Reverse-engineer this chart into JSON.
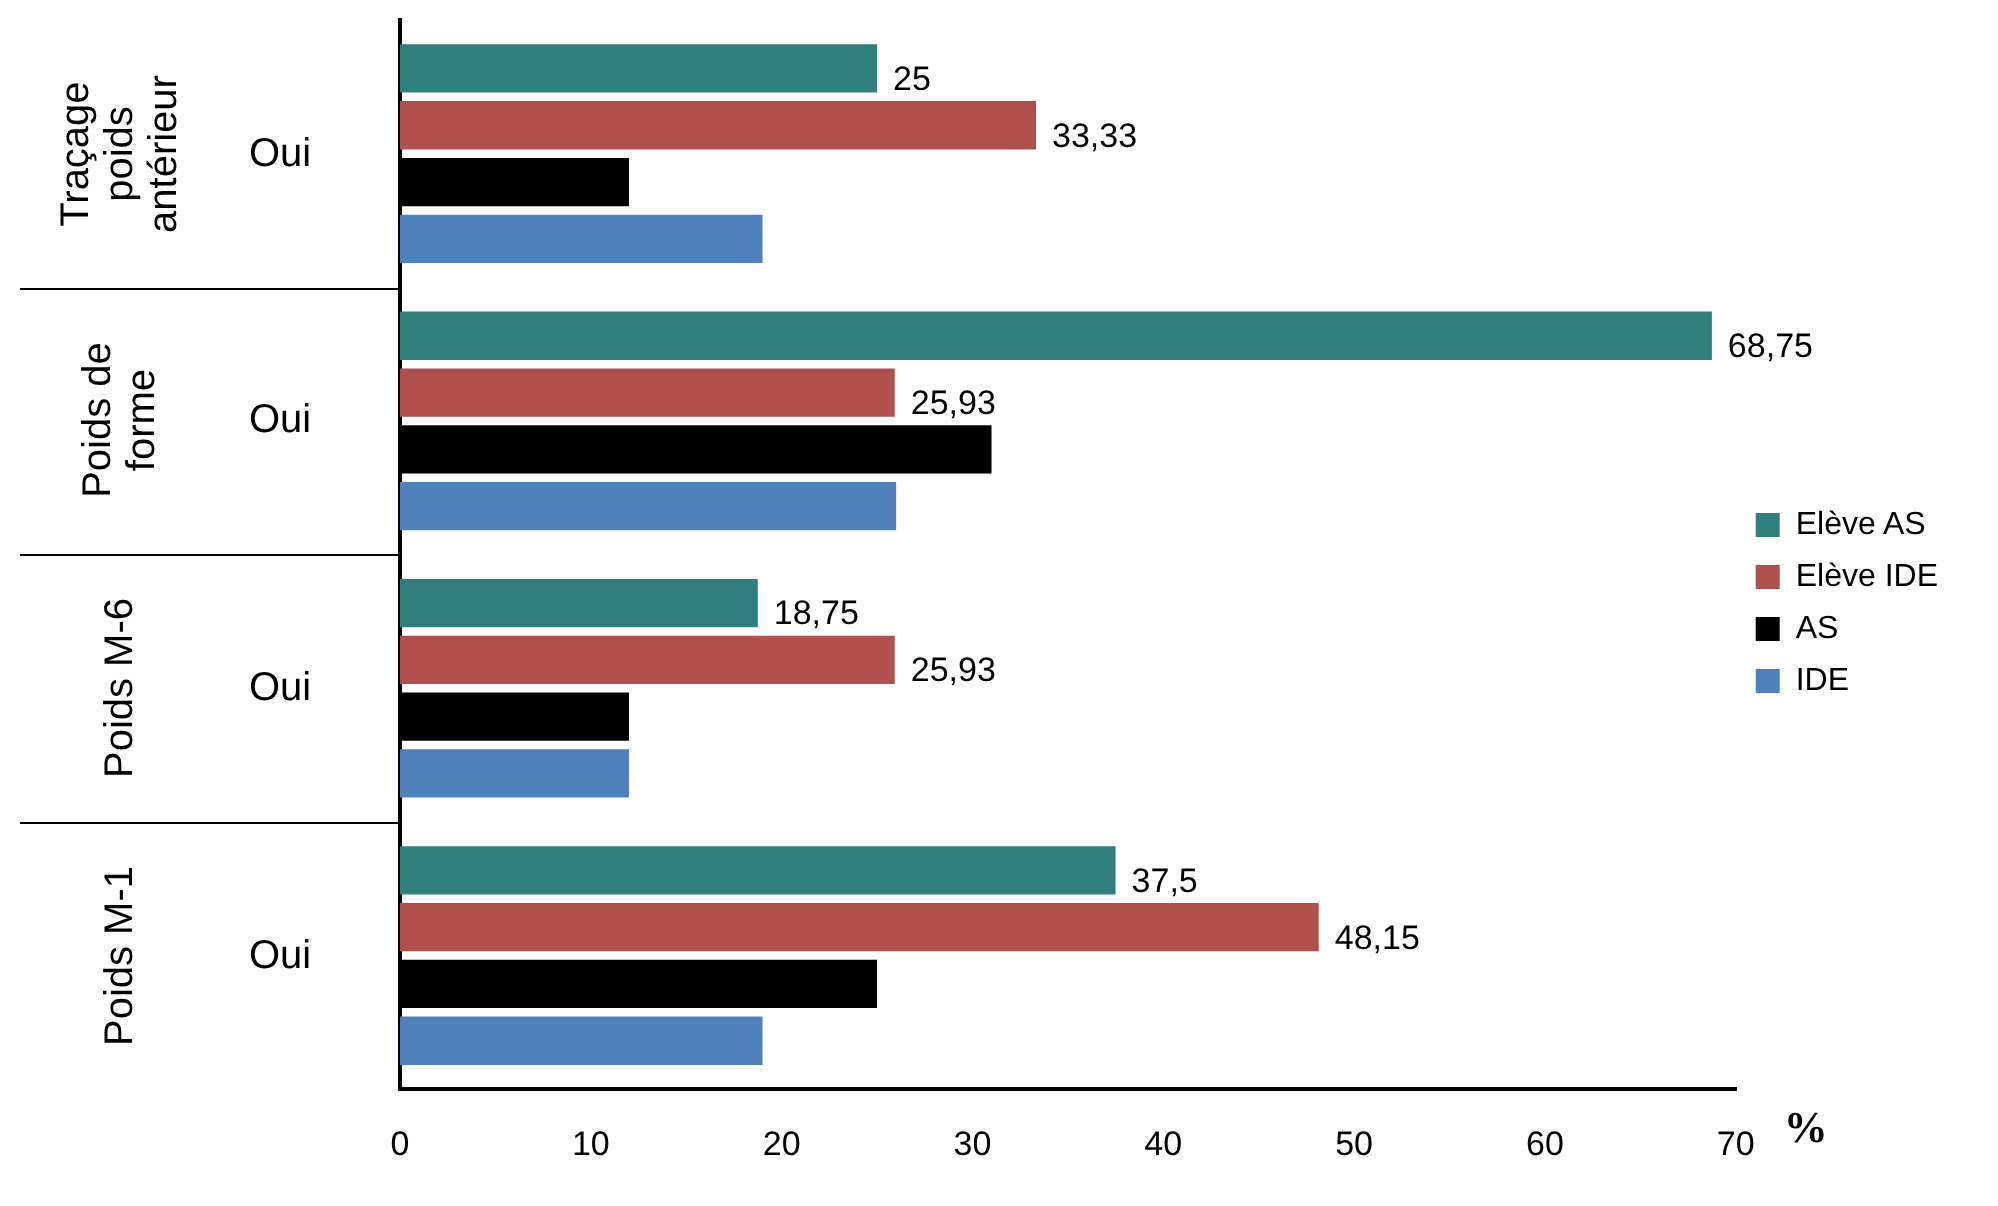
{
  "chart_data": {
    "type": "bar",
    "orientation": "horizontal",
    "categories": [
      "Traçage poids antérieur",
      "Poids de forme",
      "Poids M-6",
      "Poids M-1"
    ],
    "series": [
      {
        "name": "Elève AS",
        "color": "#2f7f7f",
        "values": [
          25,
          68.75,
          18.75,
          37.5
        ],
        "value_labels": [
          "25",
          "68,75",
          "18,75",
          "37,5"
        ]
      },
      {
        "name": "Elève IDE",
        "color": "#b0504d",
        "values": [
          33.33,
          25.93,
          25.93,
          48.15
        ],
        "value_labels": [
          "33,33",
          "25,93",
          "25,93",
          "48,15"
        ]
      },
      {
        "name": "AS",
        "color": "#000000",
        "values": [
          12,
          31,
          12,
          25
        ]
      },
      {
        "name": "IDE",
        "color": "#4f81bd",
        "values": [
          19,
          26,
          12,
          19
        ]
      }
    ],
    "annotations": [
      "Oui",
      "Oui",
      "Oui",
      "Oui"
    ],
    "xlabel": "%",
    "xlim": [
      0,
      70
    ],
    "xticks": [
      0,
      10,
      20,
      30,
      40,
      50,
      60,
      70
    ],
    "legend": "right",
    "grid": false
  }
}
